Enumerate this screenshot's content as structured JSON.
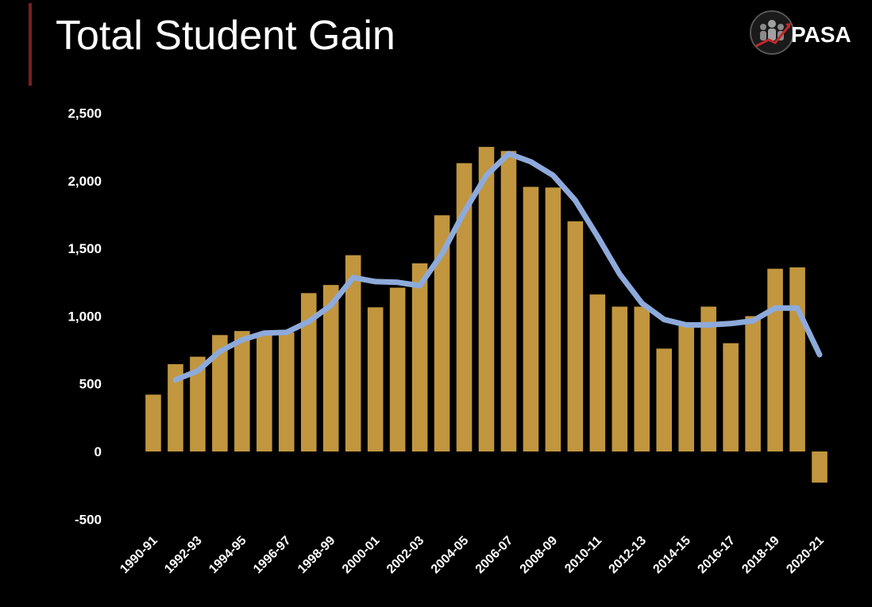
{
  "header": {
    "title": "Total Student Gain",
    "logo_text": "PASA"
  },
  "colors": {
    "background": "#000000",
    "bar": "#c1963f",
    "line": "#8eaadb",
    "accent": "#7a1e23",
    "text": "#ffffff"
  },
  "chart_data": {
    "type": "bar",
    "title": "Total Student Gain",
    "xlabel": "",
    "ylabel": "",
    "ylim": [
      -500,
      2500
    ],
    "y_ticks": [
      "-500",
      "0",
      "500",
      "1,000",
      "1,500",
      "2,000",
      "2,500"
    ],
    "y_tick_values": [
      -500,
      0,
      500,
      1000,
      1500,
      2000,
      2500
    ],
    "grid": false,
    "legend": "none",
    "categories": [
      "1990-91",
      "1991-92",
      "1992-93",
      "1993-94",
      "1994-95",
      "1995-96",
      "1996-97",
      "1997-98",
      "1998-99",
      "1999-00",
      "2000-01",
      "2001-02",
      "2002-03",
      "2003-04",
      "2004-05",
      "2005-06",
      "2006-07",
      "2007-08",
      "2008-09",
      "2009-10",
      "2010-11",
      "2011-12",
      "2012-13",
      "2013-14",
      "2014-15",
      "2015-16",
      "2016-17",
      "2017-18",
      "2018-19",
      "2019-20",
      "2020-21"
    ],
    "x_tick_labels": [
      "1990-91",
      "1992-93",
      "1994-95",
      "1996-97",
      "1998-99",
      "2000-01",
      "2002-03",
      "2004-05",
      "2006-07",
      "2008-09",
      "2010-11",
      "2012-13",
      "2014-15",
      "2016-17",
      "2018-19",
      "2020-21"
    ],
    "series": [
      {
        "type": "bar",
        "values": [
          420,
          645,
          700,
          860,
          890,
          870,
          880,
          1170,
          1230,
          1450,
          1065,
          1210,
          1390,
          1745,
          2130,
          2250,
          2220,
          1955,
          1950,
          1700,
          1160,
          1070,
          1070,
          760,
          930,
          1070,
          800,
          1000,
          1350,
          1360,
          -230
        ]
      },
      {
        "type": "line",
        "values": [
          null,
          530,
          595,
          740,
          825,
          875,
          880,
          960,
          1080,
          1285,
          1255,
          1250,
          1225,
          1460,
          1770,
          2040,
          2200,
          2140,
          2040,
          1855,
          1590,
          1310,
          1095,
          975,
          935,
          935,
          945,
          965,
          1060,
          1060,
          715
        ]
      }
    ]
  }
}
